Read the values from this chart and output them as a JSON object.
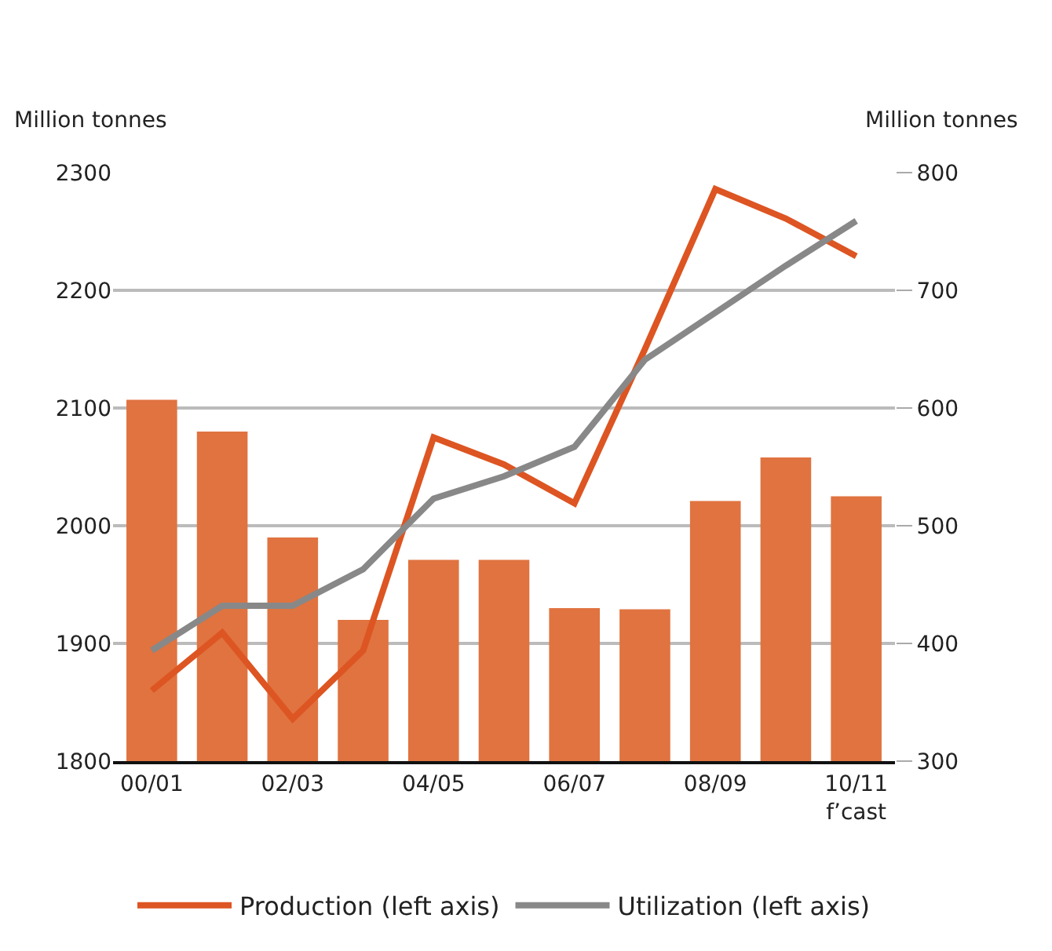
{
  "chart_data": {
    "type": "bar",
    "categories": [
      "00/01",
      null,
      "02/03",
      null,
      "04/05",
      null,
      "06/07",
      null,
      "08/09",
      null,
      "10/11\nf’cast"
    ],
    "series": [
      {
        "axis": "y2",
        "color": "#e07340",
        "values": [
          607,
          580,
          490,
          420,
          471,
          471,
          430,
          429,
          521,
          558,
          525
        ]
      },
      {
        "type": "line",
        "name": "Production (left axis)",
        "color": "#dd5522",
        "values": [
          1860,
          1909,
          1836,
          1894,
          2075,
          2052,
          2019,
          2150,
          2286,
          2261,
          2229
        ]
      },
      {
        "type": "line",
        "name": "Utilization (left axis)",
        "color": "#888888",
        "values": [
          1894,
          1932,
          1932,
          1963,
          2023,
          2042,
          2067,
          2141,
          2181,
          2221,
          2259
        ]
      }
    ],
    "ylabel": "Million tonnes",
    "y2label": "Million tonnes",
    "ylim": [
      1800,
      2300
    ],
    "yticks": [
      1800,
      1900,
      2000,
      2100,
      2200,
      2300
    ],
    "y2lim": [
      300,
      800
    ],
    "y2ticks": [
      300,
      400,
      500,
      600,
      700,
      800
    ],
    "grid": "y",
    "legend": "bottom",
    "marker": "none",
    "line_style": "solid"
  }
}
